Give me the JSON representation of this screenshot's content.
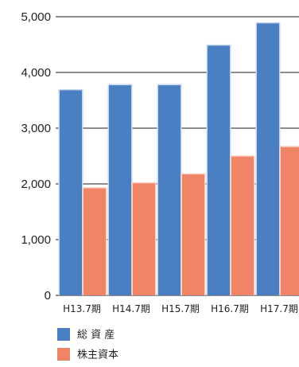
{
  "chart_data": {
    "type": "bar",
    "categories": [
      "H13.7期",
      "H14.7期",
      "H15.7期",
      "H16.7期",
      "H17.7期"
    ],
    "series": [
      {
        "name": "総 資 産",
        "values": [
          3680,
          3770,
          3770,
          4480,
          4880
        ],
        "color": "#4a7fc1"
      },
      {
        "name": "株主資本",
        "values": [
          1920,
          2010,
          2170,
          2490,
          2660
        ],
        "color": "#ef8466"
      }
    ],
    "yticks": [
      "0",
      "1,000",
      "2,000",
      "3,000",
      "4,000",
      "5,000"
    ],
    "ylim": [
      0,
      5000
    ],
    "grid": true,
    "legend_position": "bottom-left",
    "title": "",
    "xlabel": "",
    "ylabel": ""
  }
}
